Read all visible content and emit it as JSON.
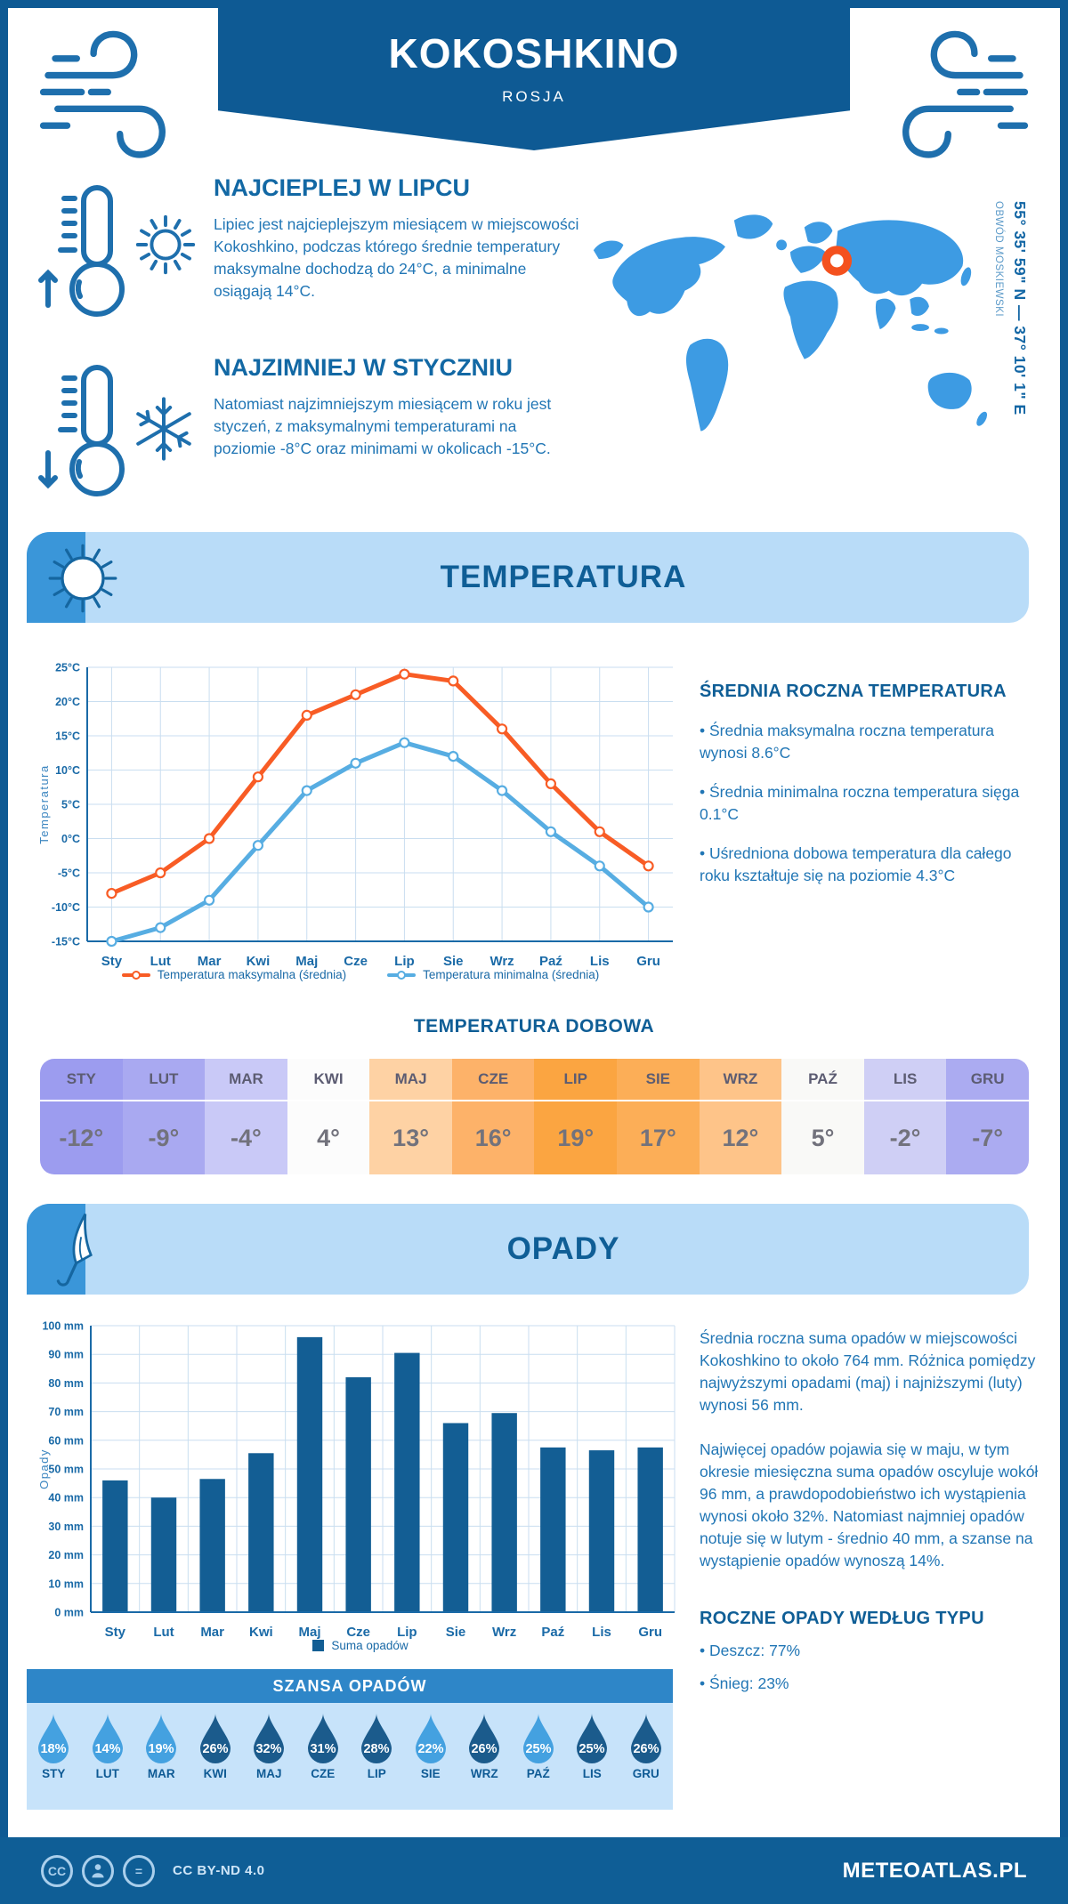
{
  "header": {
    "title": "KOKOSHKINO",
    "subtitle": "ROSJA"
  },
  "location": {
    "coordinates": "55° 35' 59\" N — 37° 10' 1\" E",
    "region": "OBWÓD MOSKIEWSKI"
  },
  "facts": [
    {
      "title": "NAJCIEPLEJ W LIPCU",
      "text": "Lipiec jest najcieplejszym miesiącem w miejscowości Kokoshkino, podczas którego średnie temperatury maksymalne dochodzą do 24°C, a minimalne osiągają 14°C."
    },
    {
      "title": "NAJZIMNIEJ W STYCZNIU",
      "text": "Natomiast najzimniejszym miesiącem w roku jest styczeń, z maksymalnymi temperaturami na poziomie -8°C oraz minimami w okolicach -15°C."
    }
  ],
  "temperature": {
    "section_title": "TEMPERATURA",
    "annual_title": "ŚREDNIA ROCZNA TEMPERATURA",
    "annual_bullets": [
      "Średnia maksymalna roczna temperatura wynosi 8.6°C",
      "Średnia minimalna roczna temperatura sięga 0.1°C",
      "Uśredniona dobowa temperatura dla całego roku kształtuje się na poziomie 4.3°C"
    ],
    "daily_title": "TEMPERATURA DOBOWA",
    "daily_months": [
      "STY",
      "LUT",
      "MAR",
      "KWI",
      "MAJ",
      "CZE",
      "LIP",
      "SIE",
      "WRZ",
      "PAŹ",
      "LIS",
      "GRU"
    ],
    "daily_values": [
      "-12°",
      "-9°",
      "-4°",
      "4°",
      "13°",
      "16°",
      "19°",
      "17°",
      "12°",
      "5°",
      "-2°",
      "-7°"
    ],
    "daily_cell_colors": [
      "#9c9cef",
      "#a9a9f1",
      "#c9c9f7",
      "#fcfcfc",
      "#fed2a4",
      "#fdb269",
      "#fba541",
      "#fcae57",
      "#fec489",
      "#f9f9f7",
      "#cfcff5",
      "#ababf1"
    ]
  },
  "precipitation": {
    "section_title": "OPADY",
    "paragraphs": [
      "Średnia roczna suma opadów w miejscowości Kokoshkino to około 764 mm. Różnica pomiędzy najwyższymi opadami (maj) i najniższymi (luty) wynosi 56 mm.",
      "Najwięcej opadów pojawia się w maju, w tym okresie miesięczna suma opadów oscyluje wokół 96 mm, a prawdopodobieństwo ich wystąpienia wynosi około 32%. Natomiast najmniej opadów notuje się w lutym - średnio 40 mm, a szanse na wystąpienie opadów wynoszą 14%."
    ],
    "by_type_title": "ROCZNE OPADY WEDŁUG TYPU",
    "by_type": [
      {
        "label": "Deszcz",
        "value": "77%"
      },
      {
        "label": "Śnieg",
        "value": "23%"
      }
    ],
    "chance_title": "SZANSA OPADÓW",
    "chance_months": [
      "STY",
      "LUT",
      "MAR",
      "KWI",
      "MAJ",
      "CZE",
      "LIP",
      "SIE",
      "WRZ",
      "PAŹ",
      "LIS",
      "GRU"
    ],
    "chance_values": [
      "18%",
      "14%",
      "19%",
      "26%",
      "32%",
      "31%",
      "28%",
      "22%",
      "26%",
      "25%",
      "25%",
      "26%"
    ],
    "chance_shades": [
      "light",
      "light",
      "light",
      "dark",
      "dark",
      "dark",
      "dark",
      "light",
      "dark",
      "light",
      "dark",
      "dark"
    ]
  },
  "chart_data": [
    {
      "type": "line",
      "x": [
        "Sty",
        "Lut",
        "Mar",
        "Kwi",
        "Maj",
        "Cze",
        "Lip",
        "Sie",
        "Wrz",
        "Paź",
        "Lis",
        "Gru"
      ],
      "ylabel": "Temperatura",
      "ylim": [
        -15,
        25
      ],
      "ytick_step": 5,
      "ytick_suffix": "°C",
      "grid": true,
      "legend_position": "bottom",
      "series": [
        {
          "name": "Temperatura maksymalna (średnia)",
          "color": "#f85c25",
          "values": [
            -8,
            -5,
            0,
            9,
            18,
            21,
            24,
            23,
            16,
            8,
            1,
            -4
          ]
        },
        {
          "name": "Temperatura minimalna (średnia)",
          "color": "#57ade2",
          "values": [
            -15,
            -13,
            -9,
            -1,
            7,
            11,
            14,
            12,
            7,
            1,
            -4,
            -10
          ]
        }
      ]
    },
    {
      "type": "bar",
      "categories": [
        "Sty",
        "Lut",
        "Mar",
        "Kwi",
        "Maj",
        "Cze",
        "Lip",
        "Sie",
        "Wrz",
        "Paź",
        "Lis",
        "Gru"
      ],
      "values": [
        46,
        40,
        46.5,
        55.5,
        96,
        82,
        90.5,
        66,
        69.5,
        57.5,
        56.5,
        57.5
      ],
      "ylabel": "Opady",
      "ylim": [
        0,
        100
      ],
      "ytick_step": 10,
      "ytick_suffix": " mm",
      "grid": true,
      "legend": "Suma opadów",
      "bar_color": "#135e94"
    }
  ],
  "footer": {
    "license": "CC BY-ND 4.0",
    "brand": "METEOATLAS.PL"
  },
  "colors": {
    "brand_blue": "#0e5a94",
    "accent_blue": "#3a96d9",
    "light_banner": "#b9dcf8",
    "map_blue": "#3d9be3",
    "marker_orange": "#f4511e",
    "line_max": "#f85c25",
    "line_min": "#57ade2",
    "bar": "#135e94",
    "drop_light": "#44a1e0",
    "drop_dark": "#1b5b8c",
    "grid": "#c9def0",
    "axis": "#1a6aa7"
  }
}
